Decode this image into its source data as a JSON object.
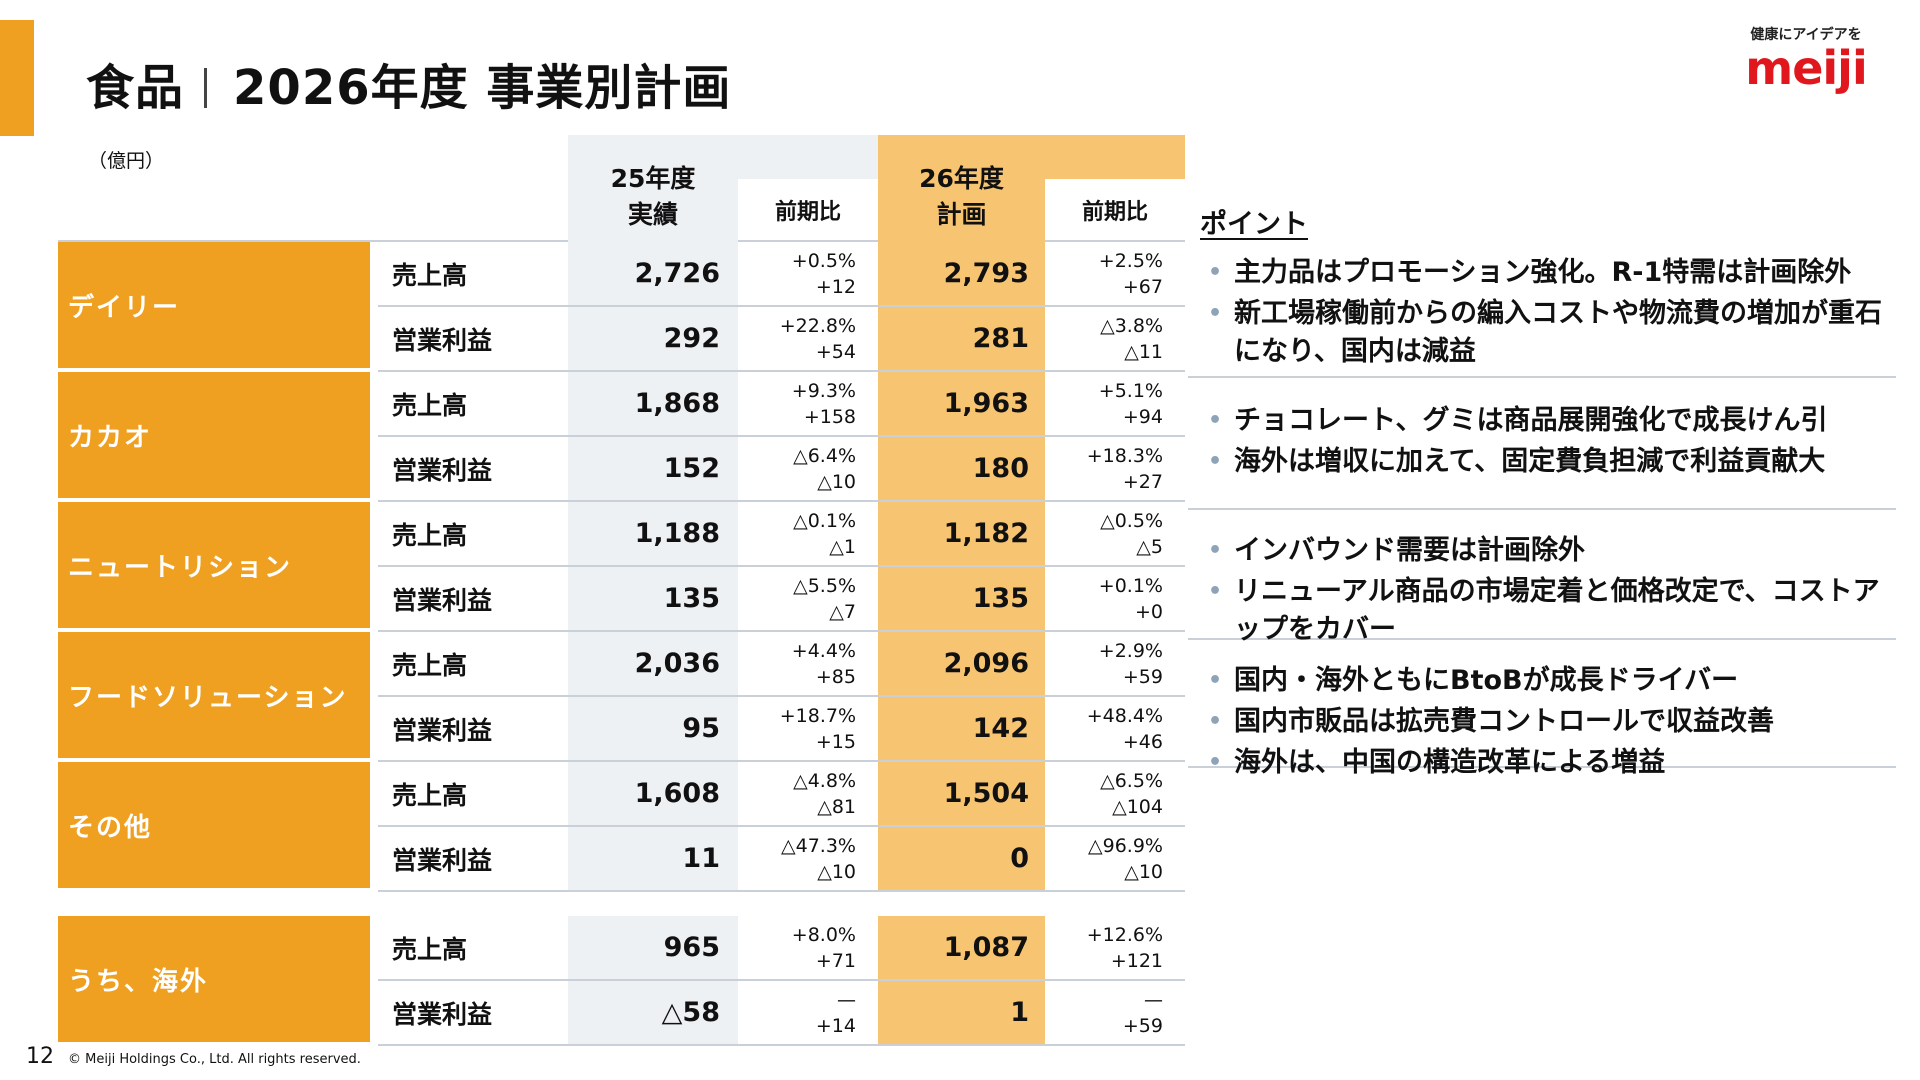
{
  "header": {
    "title_left": "食品",
    "title_right": "2026年度 事業別計画",
    "unit": "（億円）"
  },
  "logo": {
    "tagline": "健康にアイデアを",
    "word": "meiji"
  },
  "table": {
    "col_a": {
      "line1": "25年度",
      "line2": "実績",
      "change": "前期比"
    },
    "col_b": {
      "line1": "26年度",
      "line2": "計画",
      "change": "前期比"
    },
    "segments": [
      {
        "name": "デイリー",
        "rows": [
          {
            "metric": "売上高",
            "a": "2,726",
            "a_c1": "+0.5%",
            "a_c2": "+12",
            "b": "2,793",
            "b_c1": "+2.5%",
            "b_c2": "+67"
          },
          {
            "metric": "営業利益",
            "a": "292",
            "a_c1": "+22.8%",
            "a_c2": "+54",
            "b": "281",
            "b_c1": "△3.8%",
            "b_c2": "△11"
          }
        ]
      },
      {
        "name": "カカオ",
        "rows": [
          {
            "metric": "売上高",
            "a": "1,868",
            "a_c1": "+9.3%",
            "a_c2": "+158",
            "b": "1,963",
            "b_c1": "+5.1%",
            "b_c2": "+94"
          },
          {
            "metric": "営業利益",
            "a": "152",
            "a_c1": "△6.4%",
            "a_c2": "△10",
            "b": "180",
            "b_c1": "+18.3%",
            "b_c2": "+27"
          }
        ]
      },
      {
        "name": "ニュートリション",
        "rows": [
          {
            "metric": "売上高",
            "a": "1,188",
            "a_c1": "△0.1%",
            "a_c2": "△1",
            "b": "1,182",
            "b_c1": "△0.5%",
            "b_c2": "△5"
          },
          {
            "metric": "営業利益",
            "a": "135",
            "a_c1": "△5.5%",
            "a_c2": "△7",
            "b": "135",
            "b_c1": "+0.1%",
            "b_c2": "+0"
          }
        ]
      },
      {
        "name": "フードソリューション",
        "rows": [
          {
            "metric": "売上高",
            "a": "2,036",
            "a_c1": "+4.4%",
            "a_c2": "+85",
            "b": "2,096",
            "b_c1": "+2.9%",
            "b_c2": "+59"
          },
          {
            "metric": "営業利益",
            "a": "95",
            "a_c1": "+18.7%",
            "a_c2": "+15",
            "b": "142",
            "b_c1": "+48.4%",
            "b_c2": "+46"
          }
        ]
      },
      {
        "name": "その他",
        "rows": [
          {
            "metric": "売上高",
            "a": "1,608",
            "a_c1": "△4.8%",
            "a_c2": "△81",
            "b": "1,504",
            "b_c1": "△6.5%",
            "b_c2": "△104"
          },
          {
            "metric": "営業利益",
            "a": "11",
            "a_c1": "△47.3%",
            "a_c2": "△10",
            "b": "0",
            "b_c1": "△96.9%",
            "b_c2": "△10"
          }
        ]
      },
      {
        "name": "うち、海外",
        "rows": [
          {
            "metric": "売上高",
            "a": "965",
            "a_c1": "+8.0%",
            "a_c2": "+71",
            "b": "1,087",
            "b_c1": "+12.6%",
            "b_c2": "+121"
          },
          {
            "metric": "営業利益",
            "a": "△58",
            "a_c1": "—",
            "a_c2": "+14",
            "b": "1",
            "b_c1": "—",
            "b_c2": "+59"
          }
        ]
      }
    ]
  },
  "points": {
    "title": "ポイント",
    "groups": [
      {
        "items": [
          "主力品はプロモーション強化。R-1特需は計画除外",
          "新工場稼働前からの編入コストや物流費の増加が重石になり、国内は減益"
        ]
      },
      {
        "items": [
          "チョコレート、グミは商品展開強化で成長けん引",
          "海外は増収に加えて、固定費負担減で利益貢献大"
        ]
      },
      {
        "items": [
          "インバウンド需要は計画除外",
          "リニューアル商品の市場定着と価格改定で、コストアップをカバー"
        ]
      },
      {
        "items": [
          "国内・海外ともにBtoBが成長ドライバー",
          "国内市販品は拡売費コントロールで収益改善",
          "海外は、中国の構造改革による増益"
        ]
      }
    ]
  },
  "footer": {
    "page": "12",
    "copyright": "© Meiji Holdings Co., Ltd. All rights reserved."
  },
  "colors": {
    "accent": "#f0a020",
    "plan_fill": "#f7c472",
    "actual_fill": "#eef1f4",
    "logo_red": "#e0181e",
    "rule": "#c9d0d8"
  }
}
